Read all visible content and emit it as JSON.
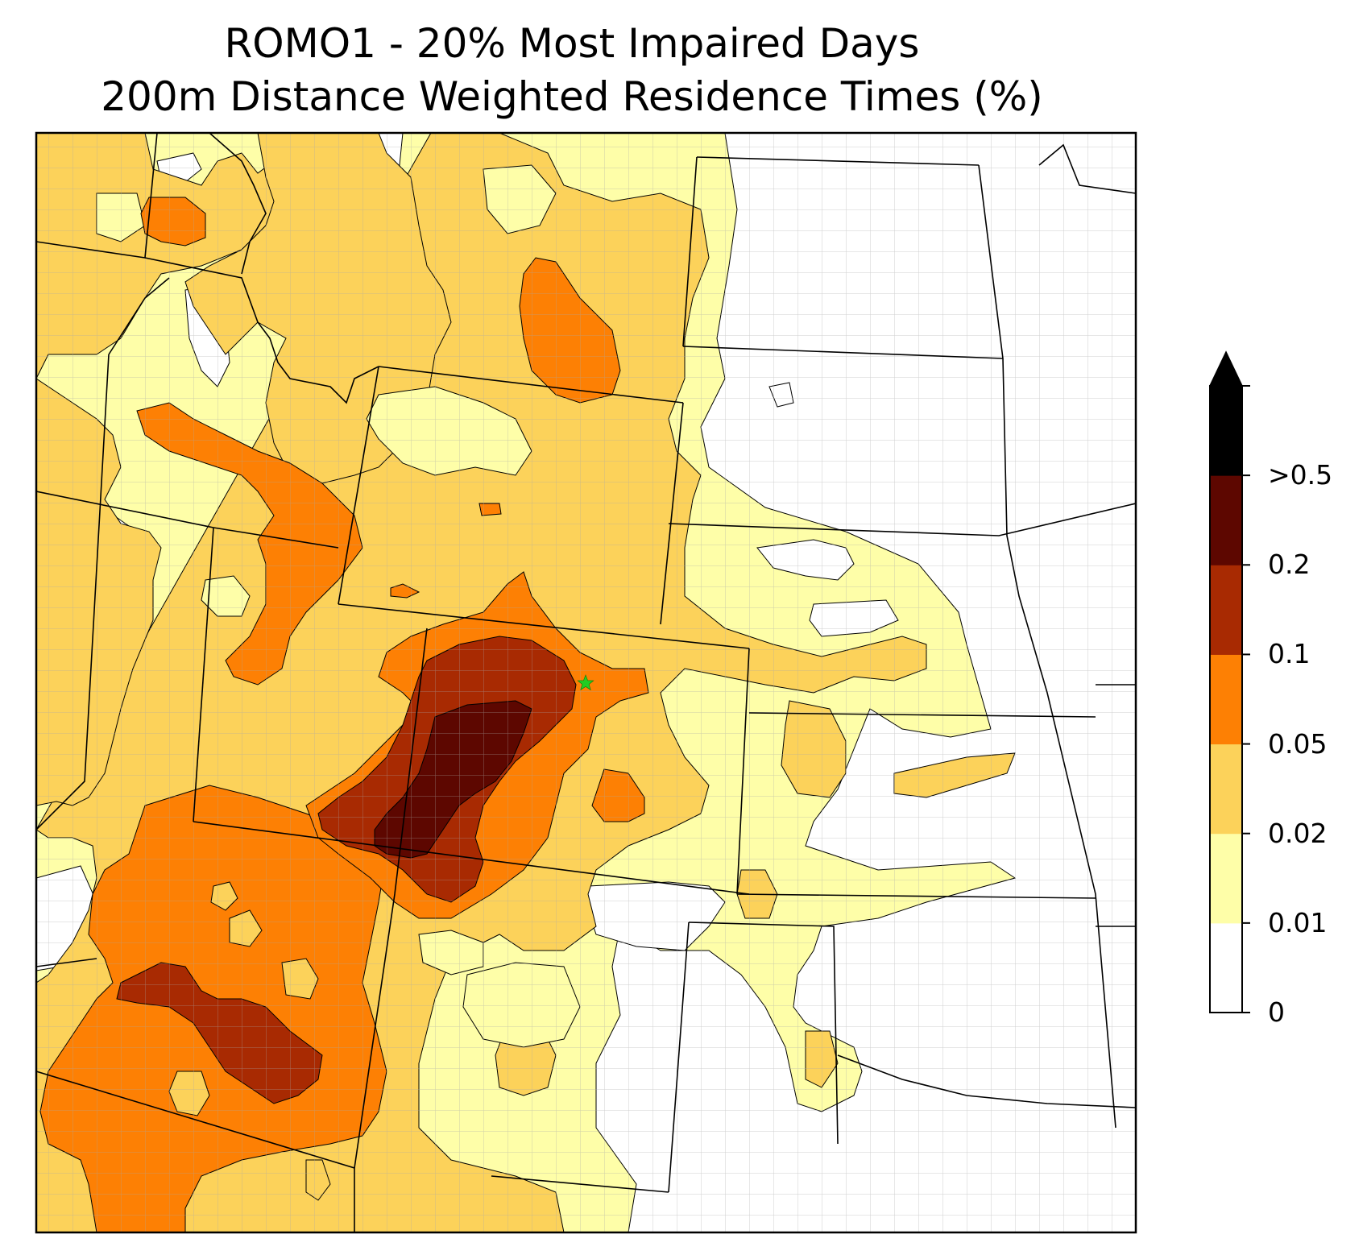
{
  "title": {
    "line1": "ROMO1 - 20% Most Impaired Days",
    "line2": "200m Distance Weighted Residence Times (%)"
  },
  "colorbar": {
    "levels": [
      {
        "label": "0",
        "value": 0,
        "color": "#ffffff"
      },
      {
        "label": "0.01",
        "value": 0.01,
        "color": "#fefea8"
      },
      {
        "label": "0.02",
        "value": 0.02,
        "color": "#fcd25a"
      },
      {
        "label": "0.05",
        "value": 0.05,
        "color": "#fd8004"
      },
      {
        "label": "0.1",
        "value": 0.1,
        "color": "#a82a02"
      },
      {
        "label": "0.2",
        "value": 0.2,
        "color": "#5d0700"
      },
      {
        "label": ">0.5",
        "value": 0.5,
        "color": "#000000"
      }
    ],
    "extend": "max"
  },
  "receptor": {
    "name": "ROMO1 site marker",
    "symbol": "star",
    "color": "#22cc22"
  }
}
